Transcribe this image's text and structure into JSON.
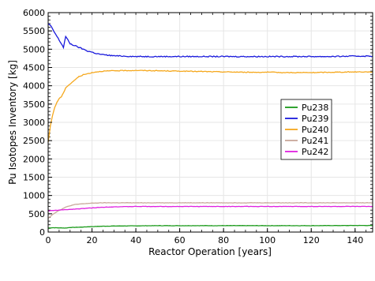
{
  "chart_data": {
    "type": "line",
    "title": "",
    "xlabel": "Reactor Operation [years]",
    "ylabel": "Pu Isotopes Inventory [kg]",
    "xlim": [
      0,
      148
    ],
    "ylim": [
      0,
      6000
    ],
    "xticks": [
      0,
      20,
      40,
      60,
      80,
      100,
      120,
      140
    ],
    "yticks": [
      0,
      500,
      1000,
      1500,
      2000,
      2500,
      3000,
      3500,
      4000,
      4500,
      5000,
      5500,
      6000
    ],
    "grid": true,
    "legend_position": "right-middle",
    "series": [
      {
        "name": "Pu238",
        "color": "#1a9a1a",
        "x": [
          0,
          2,
          5,
          8,
          10,
          15,
          20,
          25,
          30,
          40,
          50,
          60,
          80,
          100,
          120,
          140,
          148
        ],
        "y": [
          110,
          120,
          115,
          110,
          125,
          135,
          150,
          160,
          165,
          170,
          175,
          175,
          175,
          175,
          175,
          180,
          180
        ]
      },
      {
        "name": "Pu239",
        "color": "#1a1adc",
        "x": [
          0,
          1,
          2,
          3,
          4,
          5,
          6,
          7,
          8,
          9,
          10,
          12,
          14,
          16,
          18,
          20,
          22,
          25,
          30,
          35,
          40,
          50,
          60,
          70,
          80,
          90,
          100,
          110,
          120,
          130,
          140,
          148
        ],
        "y": [
          5700,
          5650,
          5550,
          5450,
          5350,
          5250,
          5150,
          5050,
          5350,
          5250,
          5150,
          5100,
          5050,
          5000,
          4950,
          4920,
          4880,
          4850,
          4820,
          4810,
          4800,
          4800,
          4800,
          4800,
          4800,
          4800,
          4800,
          4800,
          4800,
          4800,
          4810,
          4810
        ]
      },
      {
        "name": "Pu240",
        "color": "#f5a81e",
        "x": [
          0,
          1,
          2,
          3,
          4,
          5,
          6,
          7,
          8,
          10,
          12,
          14,
          16,
          18,
          20,
          22,
          25,
          30,
          40,
          50,
          60,
          70,
          80,
          90,
          100,
          110,
          120,
          130,
          140,
          148
        ],
        "y": [
          2450,
          2900,
          3200,
          3400,
          3550,
          3650,
          3700,
          3800,
          3950,
          4050,
          4150,
          4250,
          4300,
          4330,
          4360,
          4380,
          4400,
          4410,
          4420,
          4410,
          4400,
          4390,
          4380,
          4370,
          4370,
          4360,
          4360,
          4370,
          4380,
          4380
        ]
      },
      {
        "name": "Pu241",
        "color": "#c8a89a",
        "x": [
          0,
          2,
          4,
          6,
          8,
          10,
          12,
          15,
          20,
          25,
          30,
          40,
          60,
          80,
          100,
          120,
          140,
          148
        ],
        "y": [
          380,
          480,
          560,
          620,
          680,
          720,
          750,
          770,
          790,
          800,
          800,
          800,
          800,
          800,
          800,
          800,
          800,
          800
        ]
      },
      {
        "name": "Pu242",
        "color": "#e020e0",
        "x": [
          0,
          5,
          10,
          15,
          20,
          25,
          30,
          40,
          50,
          60,
          80,
          100,
          120,
          140,
          148
        ],
        "y": [
          580,
          600,
          620,
          640,
          660,
          680,
          690,
          700,
          700,
          700,
          700,
          700,
          700,
          700,
          700
        ]
      }
    ]
  }
}
